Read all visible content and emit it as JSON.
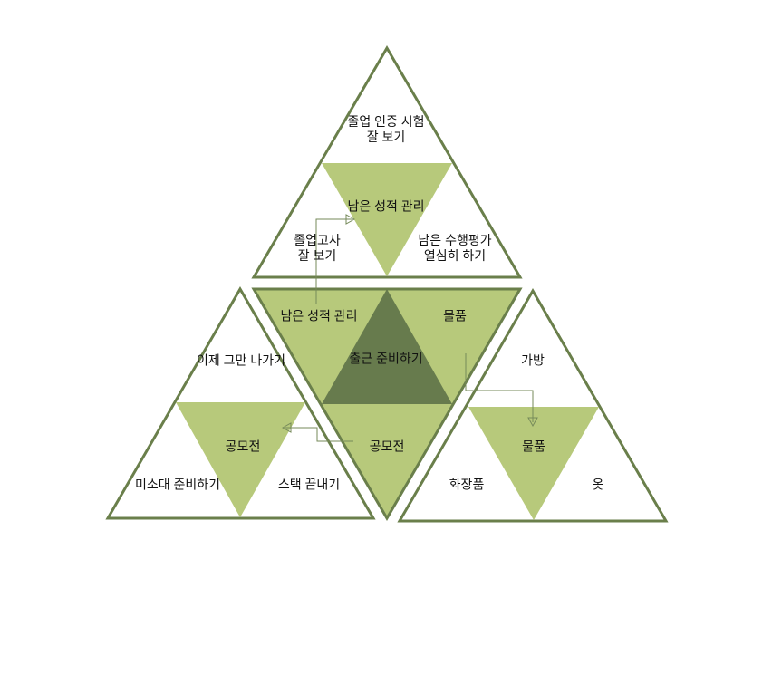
{
  "colors": {
    "outline": "#6a7f4b",
    "light": "#b7c97b",
    "dark": "#677b4d",
    "arrow": "#768a5a",
    "white": "#ffffff",
    "text": "#111111"
  },
  "top": {
    "apex": "졸업 인증 시험\n잘 보기",
    "left": "졸업고사\n잘 보기",
    "right": "남은 수행평가\n열심히 하기",
    "center": "남은 성적 관리"
  },
  "left": {
    "apex": "이제 그만 나가기",
    "left": "미소대 준비하기",
    "right": "스택 끝내기",
    "center": "공모전"
  },
  "right": {
    "apex": "가방",
    "left": "화장품",
    "right": "옷",
    "center": "물품"
  },
  "middle": {
    "left": "남은 성적 관리",
    "right": "물품",
    "bottom": "공모전",
    "center": "출근 준비하기"
  }
}
